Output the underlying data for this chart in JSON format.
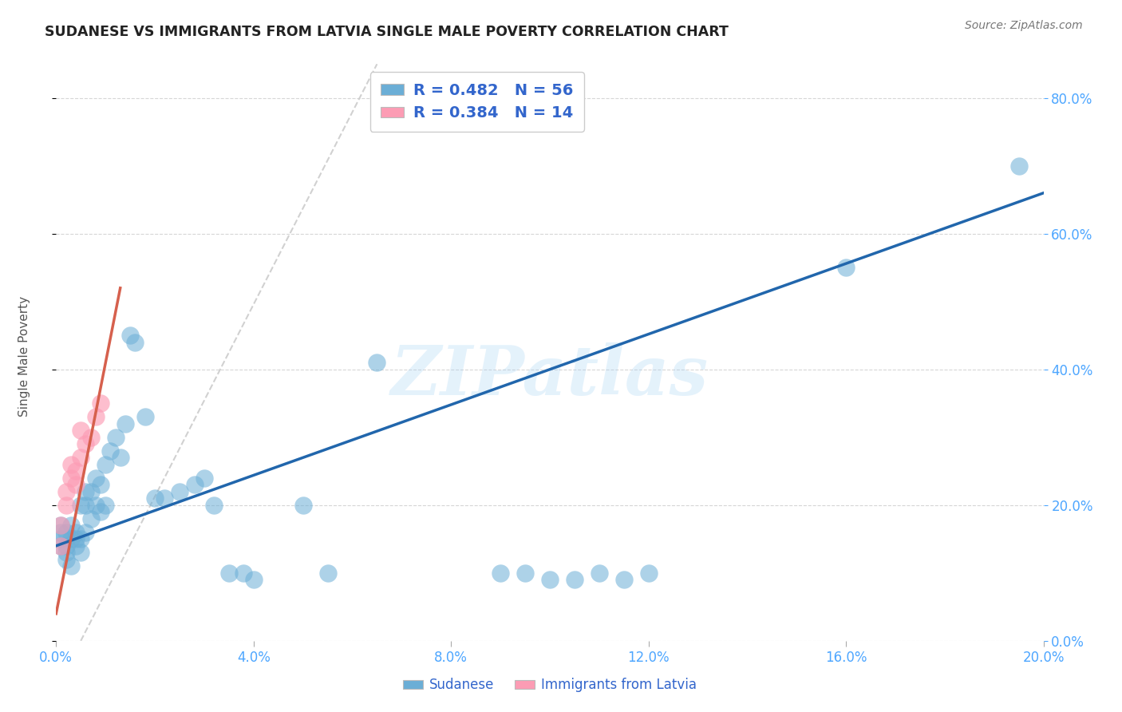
{
  "title": "SUDANESE VS IMMIGRANTS FROM LATVIA SINGLE MALE POVERTY CORRELATION CHART",
  "source": "Source: ZipAtlas.com",
  "ylabel_label": "Single Male Poverty",
  "xlim": [
    0.0,
    0.2
  ],
  "ylim": [
    0.0,
    0.85
  ],
  "xticks": [
    0.0,
    0.04,
    0.08,
    0.12,
    0.16,
    0.2
  ],
  "yticks": [
    0.0,
    0.2,
    0.4,
    0.6,
    0.8
  ],
  "legend1_label": "R = 0.482   N = 56",
  "legend2_label": "R = 0.384   N = 14",
  "legend_bottom_label1": "Sudanese",
  "legend_bottom_label2": "Immigrants from Latvia",
  "blue_color": "#6baed6",
  "pink_color": "#fc9cb4",
  "blue_line_color": "#2166ac",
  "pink_line_color": "#d6604d",
  "watermark": "ZIPatlas",
  "blue_line_x0": 0.0,
  "blue_line_y0": 0.14,
  "blue_line_x1": 0.2,
  "blue_line_y1": 0.66,
  "pink_line_x0": 0.0,
  "pink_line_y0": 0.04,
  "pink_line_x1": 0.013,
  "pink_line_y1": 0.52,
  "ref_line_x0": 0.005,
  "ref_line_y0": 0.0,
  "ref_line_x1": 0.065,
  "ref_line_y1": 0.85,
  "sudanese_x": [
    0.001,
    0.001,
    0.001,
    0.001,
    0.002,
    0.002,
    0.002,
    0.002,
    0.003,
    0.003,
    0.003,
    0.004,
    0.004,
    0.004,
    0.005,
    0.005,
    0.005,
    0.006,
    0.006,
    0.006,
    0.007,
    0.007,
    0.008,
    0.008,
    0.009,
    0.009,
    0.01,
    0.01,
    0.011,
    0.012,
    0.013,
    0.014,
    0.015,
    0.016,
    0.018,
    0.02,
    0.022,
    0.025,
    0.028,
    0.03,
    0.032,
    0.035,
    0.038,
    0.04,
    0.05,
    0.055,
    0.065,
    0.09,
    0.095,
    0.1,
    0.105,
    0.11,
    0.115,
    0.12,
    0.16,
    0.195
  ],
  "sudanese_y": [
    0.14,
    0.16,
    0.17,
    0.15,
    0.14,
    0.16,
    0.13,
    0.12,
    0.15,
    0.17,
    0.11,
    0.14,
    0.15,
    0.16,
    0.13,
    0.15,
    0.2,
    0.16,
    0.2,
    0.22,
    0.18,
    0.22,
    0.2,
    0.24,
    0.19,
    0.23,
    0.2,
    0.26,
    0.28,
    0.3,
    0.27,
    0.32,
    0.45,
    0.44,
    0.33,
    0.21,
    0.21,
    0.22,
    0.23,
    0.24,
    0.2,
    0.1,
    0.1,
    0.09,
    0.2,
    0.1,
    0.41,
    0.1,
    0.1,
    0.09,
    0.09,
    0.1,
    0.09,
    0.1,
    0.55,
    0.7
  ],
  "latvia_x": [
    0.001,
    0.001,
    0.002,
    0.002,
    0.003,
    0.003,
    0.004,
    0.004,
    0.005,
    0.005,
    0.006,
    0.007,
    0.008,
    0.009
  ],
  "latvia_y": [
    0.14,
    0.17,
    0.2,
    0.22,
    0.24,
    0.26,
    0.23,
    0.25,
    0.27,
    0.31,
    0.29,
    0.3,
    0.33,
    0.35
  ]
}
